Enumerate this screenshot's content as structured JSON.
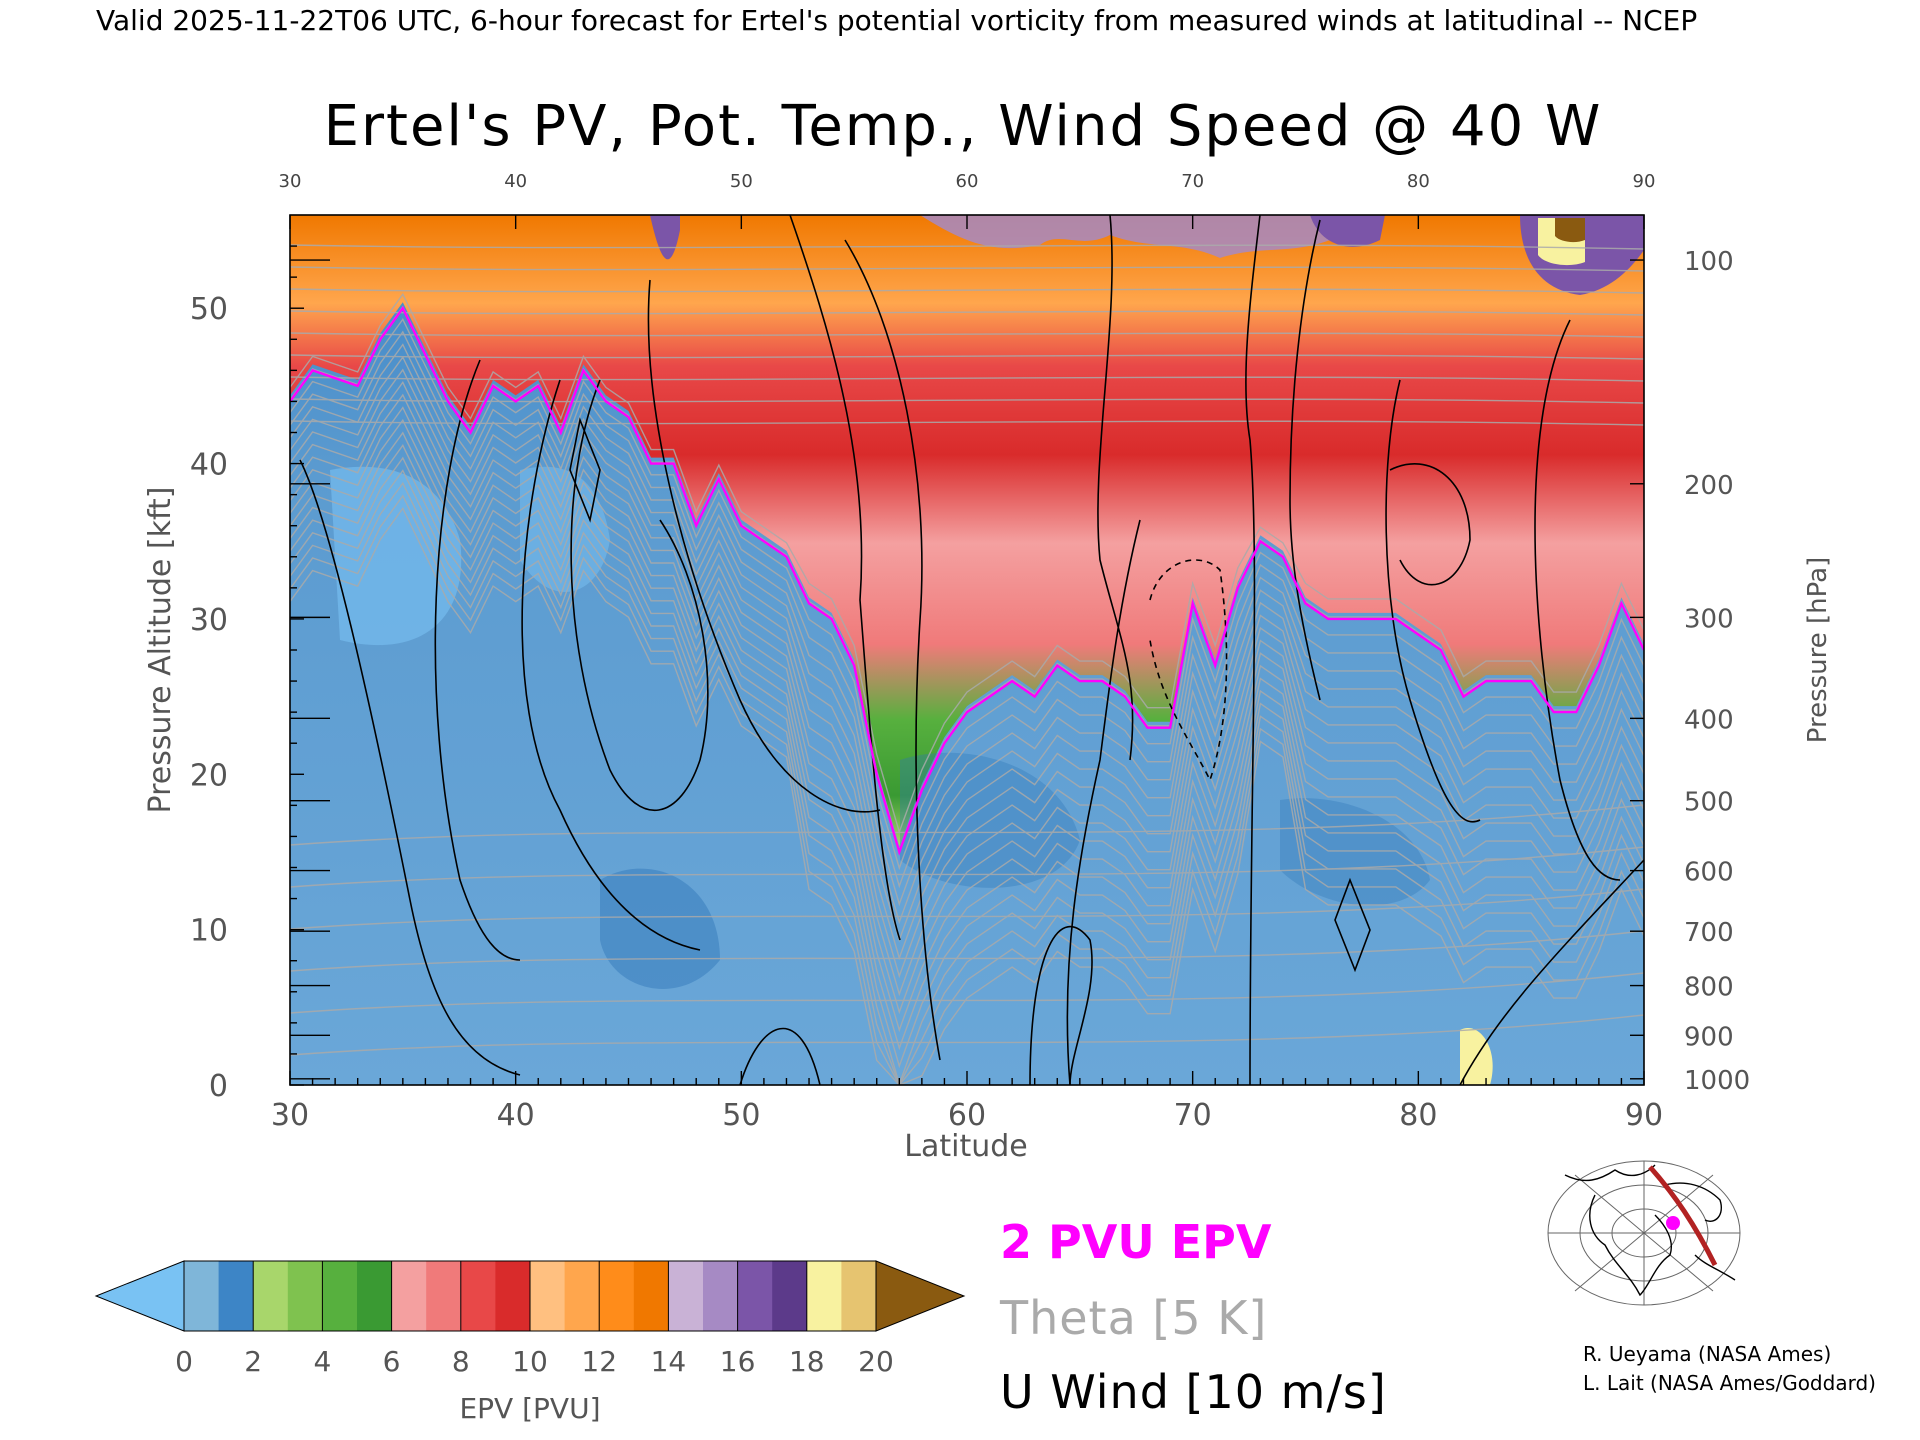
{
  "header": {
    "valid_line": "Valid 2025-11-22T06 UTC, 6-hour forecast for Ertel's potential vorticity from measured winds at latitudinal -- NCEP"
  },
  "chart_data": {
    "type": "heatmap",
    "title": "Ertel's PV, Pot. Temp., Wind Speed @ 40 W",
    "xlabel": "Latitude",
    "ylabel": "Pressure Altitude [kft]",
    "y2label": "Pressure [hPa]",
    "xlim": [
      30,
      90
    ],
    "ylim": [
      0,
      56
    ],
    "x_ticks": [
      "30",
      "40",
      "50",
      "60",
      "70",
      "80",
      "90"
    ],
    "top_x_ticks": [
      "30",
      "40",
      "50",
      "60",
      "70",
      "80",
      "90"
    ],
    "y_ticks": [
      "0",
      "10",
      "20",
      "30",
      "40",
      "50"
    ],
    "pressure_ticks": [
      {
        "label": "100",
        "kft": 53.1
      },
      {
        "label": "200",
        "kft": 38.7
      },
      {
        "label": "300",
        "kft": 30.1
      },
      {
        "label": "400",
        "kft": 23.6
      },
      {
        "label": "500",
        "kft": 18.3
      },
      {
        "label": "600",
        "kft": 13.8
      },
      {
        "label": "700",
        "kft": 9.9
      },
      {
        "label": "800",
        "kft": 6.4
      },
      {
        "label": "900",
        "kft": 3.2
      },
      {
        "label": "1000",
        "kft": 0.4
      }
    ],
    "tropopause_2pvu": [
      {
        "lat": 30,
        "kft": 44
      },
      {
        "lat": 31,
        "kft": 46
      },
      {
        "lat": 33,
        "kft": 45
      },
      {
        "lat": 34,
        "kft": 48
      },
      {
        "lat": 35,
        "kft": 50
      },
      {
        "lat": 36,
        "kft": 47
      },
      {
        "lat": 37,
        "kft": 44
      },
      {
        "lat": 38,
        "kft": 42
      },
      {
        "lat": 39,
        "kft": 45
      },
      {
        "lat": 40,
        "kft": 44
      },
      {
        "lat": 41,
        "kft": 45
      },
      {
        "lat": 42,
        "kft": 42
      },
      {
        "lat": 43,
        "kft": 46
      },
      {
        "lat": 44,
        "kft": 44
      },
      {
        "lat": 45,
        "kft": 43
      },
      {
        "lat": 46,
        "kft": 40
      },
      {
        "lat": 47,
        "kft": 40
      },
      {
        "lat": 48,
        "kft": 36
      },
      {
        "lat": 49,
        "kft": 39
      },
      {
        "lat": 50,
        "kft": 36
      },
      {
        "lat": 51,
        "kft": 35
      },
      {
        "lat": 52,
        "kft": 34
      },
      {
        "lat": 53,
        "kft": 31
      },
      {
        "lat": 54,
        "kft": 30
      },
      {
        "lat": 55,
        "kft": 27
      },
      {
        "lat": 56,
        "kft": 20
      },
      {
        "lat": 57,
        "kft": 15
      },
      {
        "lat": 58,
        "kft": 19
      },
      {
        "lat": 59,
        "kft": 22
      },
      {
        "lat": 60,
        "kft": 24
      },
      {
        "lat": 61,
        "kft": 25
      },
      {
        "lat": 62,
        "kft": 26
      },
      {
        "lat": 63,
        "kft": 25
      },
      {
        "lat": 64,
        "kft": 27
      },
      {
        "lat": 65,
        "kft": 26
      },
      {
        "lat": 66,
        "kft": 26
      },
      {
        "lat": 67,
        "kft": 25
      },
      {
        "lat": 68,
        "kft": 23
      },
      {
        "lat": 69,
        "kft": 23
      },
      {
        "lat": 70,
        "kft": 31
      },
      {
        "lat": 71,
        "kft": 27
      },
      {
        "lat": 72,
        "kft": 32
      },
      {
        "lat": 73,
        "kft": 35
      },
      {
        "lat": 74,
        "kft": 34
      },
      {
        "lat": 75,
        "kft": 31
      },
      {
        "lat": 76,
        "kft": 30
      },
      {
        "lat": 77,
        "kft": 30
      },
      {
        "lat": 78,
        "kft": 30
      },
      {
        "lat": 79,
        "kft": 30
      },
      {
        "lat": 80,
        "kft": 29
      },
      {
        "lat": 81,
        "kft": 28
      },
      {
        "lat": 82,
        "kft": 25
      },
      {
        "lat": 83,
        "kft": 26
      },
      {
        "lat": 84,
        "kft": 26
      },
      {
        "lat": 85,
        "kft": 26
      },
      {
        "lat": 86,
        "kft": 24
      },
      {
        "lat": 87,
        "kft": 24
      },
      {
        "lat": 88,
        "kft": 27
      },
      {
        "lat": 89,
        "kft": 31
      },
      {
        "lat": 90,
        "kft": 28
      }
    ],
    "colorbar": {
      "label": "EPV [PVU]",
      "ticks": [
        "0",
        "2",
        "4",
        "6",
        "8",
        "10",
        "12",
        "14",
        "16",
        "18",
        "20"
      ],
      "bands": [
        {
          "from": 0,
          "to": 1,
          "color": "#7fb6d9"
        },
        {
          "from": 1,
          "to": 2,
          "color": "#3d85c6"
        },
        {
          "from": 2,
          "to": 3,
          "color": "#a8d66b"
        },
        {
          "from": 3,
          "to": 4,
          "color": "#7fc24f"
        },
        {
          "from": 4,
          "to": 5,
          "color": "#57b03e"
        },
        {
          "from": 5,
          "to": 6,
          "color": "#3a9a33"
        },
        {
          "from": 6,
          "to": 7,
          "color": "#f4a0a0"
        },
        {
          "from": 7,
          "to": 8,
          "color": "#f07a7a"
        },
        {
          "from": 8,
          "to": 9,
          "color": "#e84848"
        },
        {
          "from": 9,
          "to": 10,
          "color": "#d92b2b"
        },
        {
          "from": 10,
          "to": 11,
          "color": "#ffc080"
        },
        {
          "from": 11,
          "to": 12,
          "color": "#ffa64d"
        },
        {
          "from": 12,
          "to": 13,
          "color": "#ff8c1a"
        },
        {
          "from": 13,
          "to": 14,
          "color": "#f07800"
        },
        {
          "from": 14,
          "to": 15,
          "color": "#c9b2d6"
        },
        {
          "from": 15,
          "to": 16,
          "color": "#a68ac4"
        },
        {
          "from": 16,
          "to": 17,
          "color": "#7b55a8"
        },
        {
          "from": 17,
          "to": 18,
          "color": "#5c3a8a"
        },
        {
          "from": 18,
          "to": 19,
          "color": "#f8f2a0"
        },
        {
          "from": 19,
          "to": 20,
          "color": "#e6c470"
        }
      ],
      "under_color": "#79c2f3",
      "over_color": "#8a5a10"
    },
    "legend": [
      {
        "label": "2 PVU EPV",
        "color": "#ff00ff"
      },
      {
        "label": "Theta [5 K]",
        "color": "#aaaaaa"
      },
      {
        "label": "U Wind [10 m/s]",
        "color": "#000000"
      }
    ]
  },
  "credits": {
    "line1": "R. Ueyama (NASA Ames)",
    "line2": "L. Lait (NASA Ames/Goddard)"
  },
  "colors": {
    "tropopause": "#ff00ff",
    "theta": "#aaaaaa",
    "wind": "#000000",
    "cross_section": "#b22222"
  }
}
